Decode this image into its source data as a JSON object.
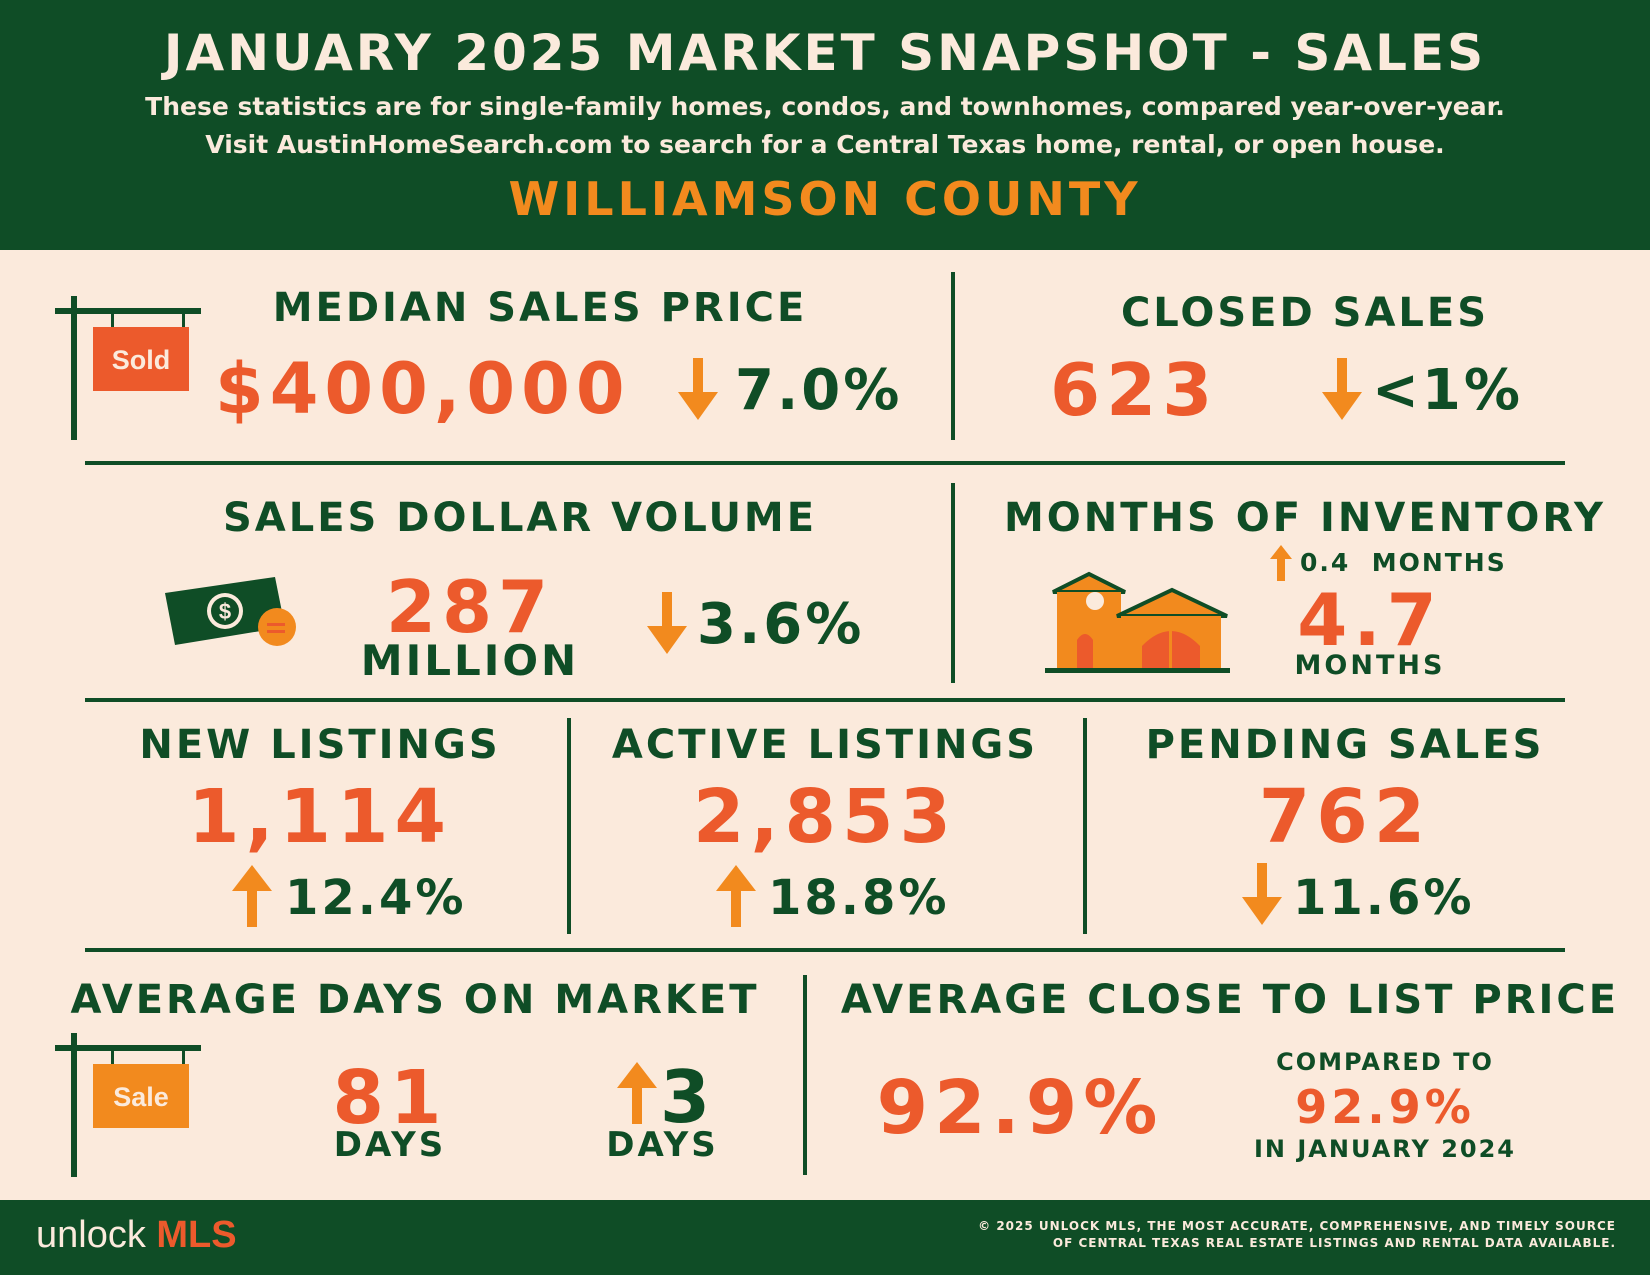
{
  "header": {
    "title": "JANUARY 2025 MARKET SNAPSHOT - SALES",
    "subtitle_line1": "These statistics are for single-family homes, condos, and townhomes, compared year-over-year.",
    "subtitle_line2": "Visit AustinHomeSearch.com to search for a Central Texas home, rental, or open house.",
    "county": "WILLIAMSON COUNTY"
  },
  "colors": {
    "dark_green": "#0f4d26",
    "cream": "#fbeadc",
    "orange_red": "#ec5a2c",
    "orange": "#f28a1e"
  },
  "median_sales_price": {
    "label": "MEDIAN SALES PRICE",
    "value": "$400,000",
    "direction": "down",
    "change": "7.0%",
    "sign_text": "Sold"
  },
  "closed_sales": {
    "label": "CLOSED SALES",
    "value": "623",
    "direction": "down",
    "change": "<1%"
  },
  "sales_dollar_volume": {
    "label": "SALES DOLLAR VOLUME",
    "value": "287",
    "unit": "MILLION",
    "direction": "down",
    "change": "3.6%",
    "icon": "money-icon"
  },
  "months_of_inventory": {
    "label": "MONTHS OF INVENTORY",
    "change": "0.4  MONTHS",
    "direction": "up",
    "value": "4.7",
    "unit": "MONTHS",
    "icon": "house-icon"
  },
  "new_listings": {
    "label": "NEW LISTINGS",
    "value": "1,114",
    "direction": "up",
    "change": "12.4%"
  },
  "active_listings": {
    "label": "ACTIVE LISTINGS",
    "value": "2,853",
    "direction": "up",
    "change": "18.8%"
  },
  "pending_sales": {
    "label": "PENDING SALES",
    "value": "762",
    "direction": "down",
    "change": "11.6%"
  },
  "avg_days_on_market": {
    "label": "AVERAGE DAYS ON MARKET",
    "value": "81",
    "unit": "DAYS",
    "direction": "up",
    "change": "3",
    "change_unit": "DAYS",
    "sign_text": "Sale"
  },
  "avg_close_to_list": {
    "label": "AVERAGE CLOSE TO LIST PRICE",
    "value": "92.9%",
    "compared_label": "COMPARED TO",
    "compared_value": "92.9%",
    "compared_period": "IN JANUARY 2024"
  },
  "footer": {
    "logo_text1": "unlock",
    "logo_text2": "MLS",
    "copyright_line1": "© 2025 UNLOCK MLS, THE MOST ACCURATE, COMPREHENSIVE, AND TIMELY SOURCE",
    "copyright_line2": "OF CENTRAL TEXAS REAL ESTATE LISTINGS AND RENTAL DATA AVAILABLE."
  }
}
